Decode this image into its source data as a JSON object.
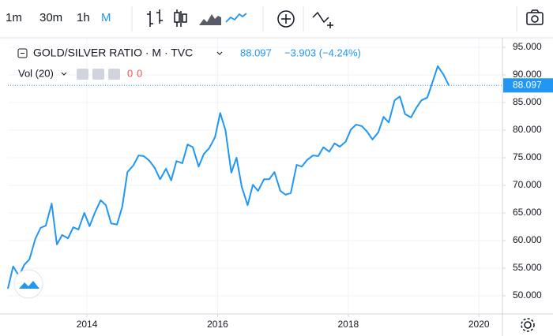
{
  "toolbar": {
    "intervals": [
      "1m",
      "30m",
      "1h",
      "M"
    ]
  },
  "legend": {
    "symbol": "GOLD/SILVER RATIO · M · TVC",
    "change": "−3.903 (−4.24%)",
    "volume": "Vol (20)",
    "volume_values": [
      "0",
      "0"
    ]
  },
  "chart_data": {
    "type": "line",
    "x": [
      2012.79,
      2012.87,
      2012.96,
      2013.04,
      2013.12,
      2013.21,
      2013.29,
      2013.37,
      2013.46,
      2013.54,
      2013.62,
      2013.71,
      2013.79,
      2013.87,
      2013.96,
      2014.04,
      2014.12,
      2014.21,
      2014.29,
      2014.37,
      2014.46,
      2014.54,
      2014.62,
      2014.71,
      2014.79,
      2014.87,
      2014.96,
      2015.04,
      2015.12,
      2015.21,
      2015.29,
      2015.37,
      2015.46,
      2015.54,
      2015.62,
      2015.71,
      2015.79,
      2015.87,
      2015.96,
      2016.04,
      2016.12,
      2016.21,
      2016.29,
      2016.37,
      2016.46,
      2016.54,
      2016.62,
      2016.71,
      2016.79,
      2016.87,
      2016.96,
      2017.04,
      2017.12,
      2017.21,
      2017.29,
      2017.37,
      2017.46,
      2017.54,
      2017.62,
      2017.71,
      2017.79,
      2017.87,
      2017.96,
      2018.04,
      2018.12,
      2018.21,
      2018.29,
      2018.37,
      2018.46,
      2018.54,
      2018.62,
      2018.71,
      2018.79,
      2018.87,
      2018.96,
      2019.04,
      2019.12,
      2019.21,
      2019.29,
      2019.37,
      2019.46,
      2019.54
    ],
    "series": [
      {
        "name": "GOLD/SILVER RATIO",
        "color": "#2196f3",
        "values": [
          51.3,
          55.3,
          53.6,
          55.6,
          56.6,
          60.3,
          62.3,
          62.7,
          66.7,
          59.3,
          61,
          60.4,
          62.4,
          62,
          65,
          62.6,
          65,
          67.3,
          66.4,
          63.1,
          62.9,
          66.1,
          72.4,
          73.6,
          75.4,
          75.3,
          74.4,
          73.1,
          71.1,
          73,
          70.9,
          74.4,
          74,
          77.4,
          76.9,
          73.4,
          75.7,
          76.7,
          78.7,
          83.1,
          80,
          72.3,
          75,
          69.7,
          66.4,
          70.1,
          69,
          71.1,
          71.1,
          72.4,
          69,
          68.3,
          68.6,
          73.7,
          73.4,
          74.6,
          75.4,
          75.3,
          76.9,
          76.1,
          77.6,
          77,
          77.9,
          80.1,
          81,
          80.7,
          79.7,
          78.3,
          79.6,
          82.4,
          81.4,
          85.4,
          86.1,
          82.9,
          82.3,
          84,
          85.4,
          85.9,
          88.7,
          91.6,
          90,
          88.097
        ]
      }
    ],
    "xlim": [
      2012.79,
      2020.36
    ],
    "xticks": [
      2014,
      2016,
      2018,
      2020
    ],
    "ylim": [
      46.71,
      96.71
    ],
    "yticks": [
      {
        "value": 50,
        "label": "50.000"
      },
      {
        "value": 55,
        "label": "55.000"
      },
      {
        "value": 60,
        "label": "60.000"
      },
      {
        "value": 65,
        "label": "65.000"
      },
      {
        "value": 70,
        "label": "70.000"
      },
      {
        "value": 75,
        "label": "75.000"
      },
      {
        "value": 80,
        "label": "80.000"
      },
      {
        "value": 85,
        "label": "85.000"
      },
      {
        "value": 90,
        "label": "90.000"
      },
      {
        "value": 95,
        "label": "95.000"
      }
    ],
    "grid": true
  }
}
